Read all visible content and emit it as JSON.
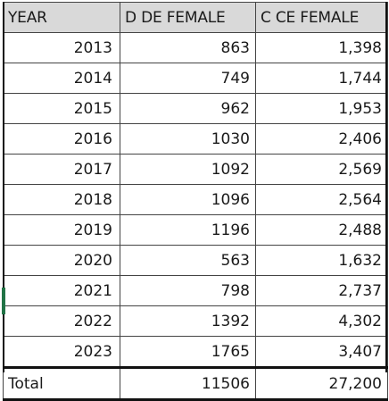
{
  "table": {
    "headers": [
      "YEAR",
      "D DE FEMALE",
      "C CE FEMALE"
    ],
    "rows": [
      {
        "year": "2013",
        "dde": "863",
        "cce": "1,398"
      },
      {
        "year": "2014",
        "dde": "749",
        "cce": "1,744"
      },
      {
        "year": "2015",
        "dde": "962",
        "cce": "1,953"
      },
      {
        "year": "2016",
        "dde": "1030",
        "cce": "2,406"
      },
      {
        "year": "2017",
        "dde": "1092",
        "cce": "2,569"
      },
      {
        "year": "2018",
        "dde": "1096",
        "cce": "2,564"
      },
      {
        "year": "2019",
        "dde": "1196",
        "cce": "2,488"
      },
      {
        "year": "2020",
        "dde": "563",
        "cce": "1,632"
      },
      {
        "year": "2021",
        "dde": "798",
        "cce": "2,737"
      },
      {
        "year": "2022",
        "dde": "1392",
        "cce": "4,302"
      },
      {
        "year": "2023",
        "dde": "1765",
        "cce": "3,407"
      }
    ],
    "total": {
      "label": "Total",
      "dde": "11506",
      "cce": "27,200"
    }
  },
  "colors": {
    "header_bg": "#d9d9d9",
    "grid": "#444444",
    "selection_marker": "#217346"
  }
}
